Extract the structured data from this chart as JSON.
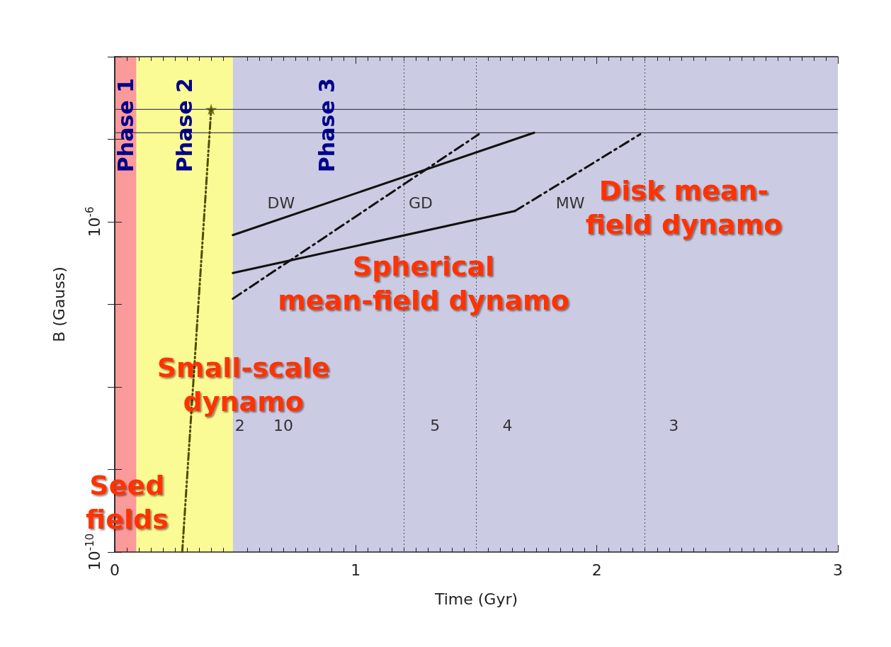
{
  "chart_data": {
    "type": "line",
    "xlabel": "Time (Gyr)",
    "ylabel": "B (Gauss)",
    "xlim": [
      0,
      3
    ],
    "xticks": [
      0,
      1,
      2,
      3
    ],
    "ylim": [
      1e-10,
      0.0001
    ],
    "yticks": [
      {
        "value": 1e-10,
        "label": "10$^{-10}$"
      },
      {
        "value": 1e-09,
        "label": null
      },
      {
        "value": 1e-08,
        "label": null
      },
      {
        "value": 1e-07,
        "label": null
      },
      {
        "value": 1e-06,
        "label": "10$^{-6}$"
      },
      {
        "value": 1e-05,
        "label": null
      },
      {
        "value": 0.0001,
        "label": null
      }
    ],
    "log": "y",
    "grid": false,
    "legend": false,
    "series": [
      {
        "name": "DW",
        "color": "#111111",
        "line_style": "solid",
        "x": [
          0.49,
          1.74
        ],
        "values": [
          6.9e-07,
          1.2e-05
        ]
      },
      {
        "name": "GD",
        "color": "#111111",
        "line_style": "dashed",
        "x": [
          0.49,
          1.51
        ],
        "values": [
          1.17e-07,
          1.15e-05
        ]
      },
      {
        "name": "MW",
        "color": "#111111",
        "line_style": "solid",
        "x": [
          0.49,
          1.66
        ],
        "values": [
          2.4e-07,
          1.35e-06
        ]
      },
      {
        "color": "#111111",
        "line_style": "dashed",
        "x": [
          1.66,
          2.18
        ],
        "values": [
          1.35e-06,
          1.15e-05
        ]
      },
      {
        "color": "#4d4d00",
        "line_style": "dotted",
        "x": [
          0.28,
          0.4
        ],
        "values": [
          1e-10,
          2.3e-05
        ]
      },
      {
        "type": "scatter",
        "marker": "star",
        "color": "#4d4d00",
        "x": [
          0.4
        ],
        "values": [
          2.3e-05
        ]
      }
    ],
    "bands": [
      {
        "axis": "x",
        "from": 0,
        "to": 0.09,
        "label": "Phase 1",
        "color": "#fa9a9a"
      },
      {
        "axis": "x",
        "from": 0.09,
        "to": 0.49,
        "label": "Phase 2",
        "color": "#fbfb96"
      },
      {
        "axis": "x",
        "from": 0.49,
        "to": 3,
        "label": "Phase 3",
        "color": "#cbcbe3"
      }
    ],
    "ref_lines": [
      {
        "axis": "y",
        "value": 2.3e-05,
        "color": "#444455",
        "line_style": "solid"
      },
      {
        "axis": "y",
        "value": 1.2e-05,
        "color": "#444455",
        "line_style": "solid"
      },
      {
        "axis": "x",
        "value": 1.2,
        "color": "#555555",
        "line_style": "dotted"
      },
      {
        "axis": "x",
        "value": 1.5,
        "color": "#555555",
        "line_style": "dotted"
      },
      {
        "axis": "x",
        "value": 2.2,
        "color": "#555555",
        "line_style": "dotted"
      }
    ],
    "annotations": [
      "Seed\nfields",
      "Small-scale\ndynamo",
      "Spherical\nmean-field dynamo",
      "Disk mean-\nfield dynamo",
      "2",
      "10",
      "5",
      "4",
      "3"
    ]
  }
}
